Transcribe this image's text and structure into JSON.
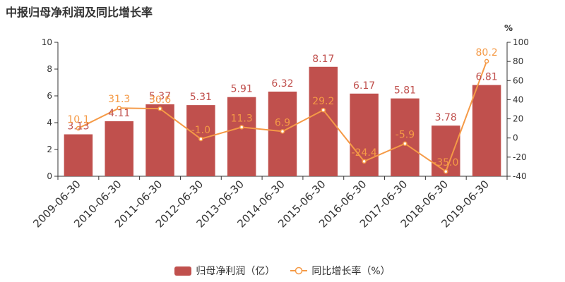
{
  "colors": {
    "bar": "#c0504d",
    "line": "#f59a46",
    "axis": "#333333",
    "grid": "#e0e0e0"
  },
  "chart_data": {
    "type": "bar",
    "title": "中报归母净利润及同比增长率",
    "categories": [
      "2009-06-30",
      "2010-06-30",
      "2011-06-30",
      "2012-06-30",
      "2013-06-30",
      "2014-06-30",
      "2015-06-30",
      "2016-06-30",
      "2017-06-30",
      "2018-06-30",
      "2019-06-30"
    ],
    "left_axis": {
      "min": 0,
      "max": 10,
      "ticks": [
        "0",
        "2",
        "4",
        "6",
        "8",
        "10"
      ],
      "label": ""
    },
    "right_axis": {
      "min": -40,
      "max": 100,
      "ticks": [
        "-40",
        "-20",
        "0",
        "20",
        "40",
        "60",
        "80",
        "100"
      ],
      "unit": "%"
    },
    "series": [
      {
        "name": "归母净利润（亿）",
        "type": "bar",
        "axis": "left",
        "values": [
          3.13,
          4.11,
          5.37,
          5.31,
          5.91,
          6.32,
          8.17,
          6.17,
          5.81,
          3.78,
          6.81
        ],
        "labels": [
          "3.13",
          "4.11",
          "5.37",
          "5.31",
          "5.91",
          "6.32",
          "8.17",
          "6.17",
          "5.81",
          "3.78",
          "6.81"
        ]
      },
      {
        "name": "同比增长率（%）",
        "type": "line",
        "axis": "right",
        "values": [
          10.1,
          31.3,
          30.6,
          -1.0,
          11.3,
          6.9,
          29.2,
          -24.4,
          -5.9,
          -35.0,
          80.2
        ],
        "labels": [
          "10.1",
          "31.3",
          "30.6",
          "-1.0",
          "11.3",
          "6.9",
          "29.2",
          "-24.4",
          "-5.9",
          "-35.0",
          "80.2"
        ]
      }
    ],
    "legend": {
      "position": "bottom"
    }
  }
}
